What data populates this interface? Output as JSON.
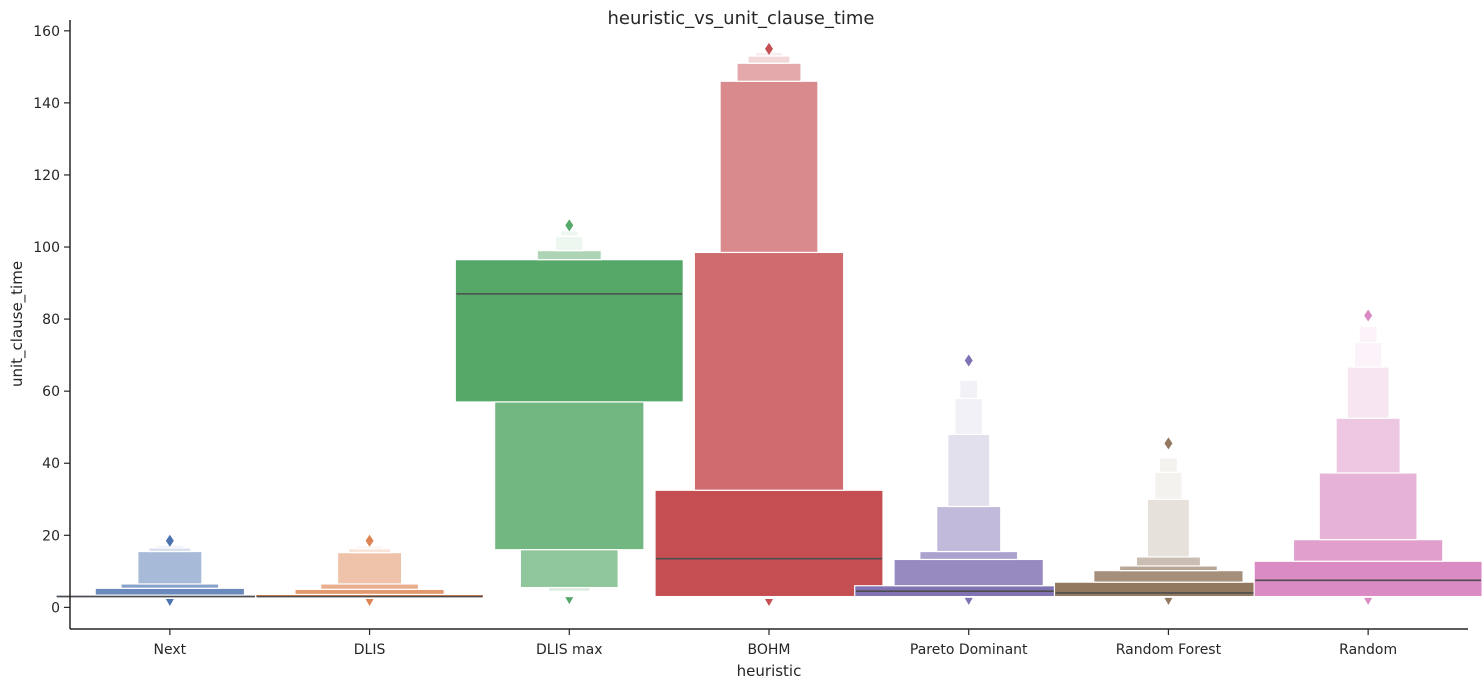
{
  "chart_data": {
    "type": "boxenplot",
    "title": "heuristic_vs_unit_clause_time",
    "xlabel": "heuristic",
    "ylabel": "unit_clause_time",
    "ylim": [
      -6,
      163
    ],
    "yticks": [
      0,
      20,
      40,
      60,
      80,
      100,
      120,
      140,
      160
    ],
    "grid": false,
    "categories": [
      "Next",
      "DLIS",
      "DLIS max",
      "BOHM",
      "Pareto Dominant",
      "Random Forest",
      "Random"
    ],
    "series": [
      {
        "category": "Next",
        "color": "#4c72b0",
        "median": 3.0,
        "boxes": [
          [
            2.7,
            3.4
          ],
          [
            3.4,
            5.3
          ],
          [
            5.3,
            6.5
          ],
          [
            6.5,
            15.5
          ],
          [
            15.5,
            16.5
          ],
          [
            16.5,
            17.2
          ]
        ],
        "outliers_low": [
          1.5
        ],
        "outliers_high": [
          18.5
        ]
      },
      {
        "category": "DLIS",
        "color": "#dd8452",
        "median": 3.0,
        "boxes": [
          [
            2.7,
            3.6
          ],
          [
            3.6,
            5.0
          ],
          [
            5.0,
            6.5
          ],
          [
            6.5,
            15.2
          ],
          [
            15.2,
            16.3
          ],
          [
            16.3,
            17.0
          ]
        ],
        "outliers_low": [
          1.5
        ],
        "outliers_high": [
          18.5
        ]
      },
      {
        "category": "DLIS max",
        "color": "#55a868",
        "median": 87,
        "boxes": [
          [
            57,
            96.5
          ],
          [
            16,
            57
          ],
          [
            5.5,
            16
          ],
          [
            96.5,
            99
          ],
          [
            4.5,
            5.5
          ],
          [
            99,
            103
          ],
          [
            103,
            104.5
          ]
        ],
        "outliers_low": [
          2.0
        ],
        "outliers_high": [
          106
        ]
      },
      {
        "category": "BOHM",
        "color": "#c44e52",
        "median": 13.5,
        "boxes": [
          [
            3,
            32.5
          ],
          [
            32.5,
            98.5
          ],
          [
            98.5,
            146
          ],
          [
            146,
            151
          ],
          [
            151,
            153
          ],
          [
            153,
            154
          ]
        ],
        "outliers_low": [
          1.5
        ],
        "outliers_high": [
          155
        ]
      },
      {
        "category": "Pareto Dominant",
        "color": "#8172b3",
        "median": 4.5,
        "boxes": [
          [
            3,
            6
          ],
          [
            6,
            13.3
          ],
          [
            13.3,
            15.5
          ],
          [
            15.5,
            28
          ],
          [
            28,
            48
          ],
          [
            48,
            58
          ],
          [
            58,
            63
          ]
        ],
        "outliers_low": [
          1.8
        ],
        "outliers_high": [
          68.5
        ]
      },
      {
        "category": "Random Forest",
        "color": "#937860",
        "median": 4.0,
        "boxes": [
          [
            3,
            7
          ],
          [
            7,
            10.2
          ],
          [
            10.2,
            11.5
          ],
          [
            11.5,
            14
          ],
          [
            14,
            30
          ],
          [
            30,
            37.5
          ],
          [
            37.5,
            41.5
          ]
        ],
        "outliers_low": [
          1.8
        ],
        "outliers_high": [
          45.5
        ]
      },
      {
        "category": "Random",
        "color": "#da8bc3",
        "median": 7.5,
        "boxes": [
          [
            3,
            12.8
          ],
          [
            12.8,
            18.8
          ],
          [
            18.8,
            37.3
          ],
          [
            37.3,
            52.5
          ],
          [
            52.5,
            66.7
          ],
          [
            66.7,
            73.5
          ],
          [
            73.5,
            78
          ]
        ],
        "outliers_low": [
          1.8
        ],
        "outliers_high": [
          81
        ]
      }
    ]
  }
}
